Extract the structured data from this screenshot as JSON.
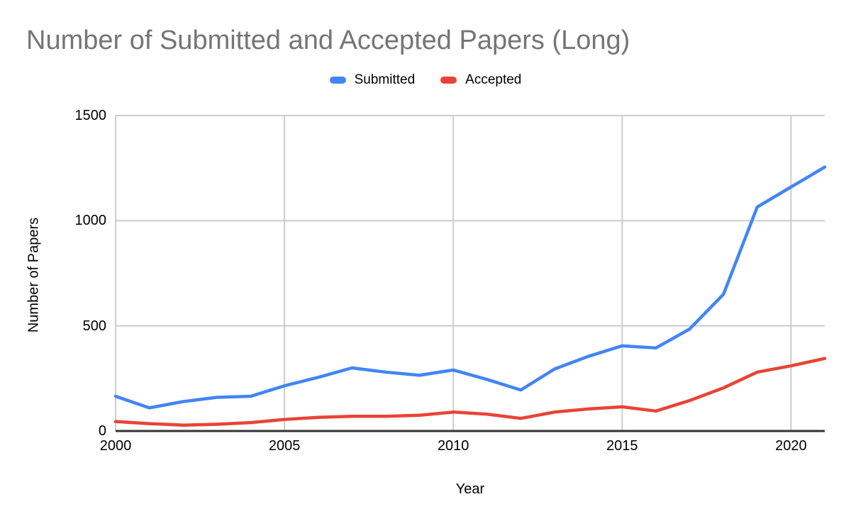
{
  "title": "Number of Submitted and Accepted Papers (Long)",
  "axes": {
    "x_title": "Year",
    "y_title": "Number of Papers"
  },
  "colors": {
    "submitted": "#4285f4",
    "accepted": "#ea4335",
    "grid": "#cccccc",
    "axis": "#333333",
    "title_text": "#757575",
    "label_text": "#000000"
  },
  "chart_data": {
    "type": "line",
    "title": "Number of Submitted and Accepted Papers (Long)",
    "xlabel": "Year",
    "ylabel": "Number of Papers",
    "x": [
      2000,
      2001,
      2002,
      2003,
      2004,
      2005,
      2006,
      2007,
      2008,
      2009,
      2010,
      2011,
      2012,
      2013,
      2014,
      2015,
      2016,
      2017,
      2018,
      2019,
      2020,
      2021
    ],
    "series": [
      {
        "name": "Submitted",
        "color": "#4285f4",
        "values": [
          165,
          110,
          140,
          160,
          165,
          215,
          255,
          300,
          280,
          265,
          290,
          245,
          195,
          295,
          355,
          405,
          395,
          485,
          650,
          1065,
          1160,
          1255
        ]
      },
      {
        "name": "Accepted",
        "color": "#ea4335",
        "values": [
          45,
          35,
          28,
          32,
          40,
          55,
          65,
          70,
          70,
          75,
          90,
          80,
          60,
          90,
          105,
          115,
          95,
          145,
          205,
          280,
          310,
          345
        ]
      }
    ],
    "xlim": [
      2000,
      2021
    ],
    "ylim": [
      0,
      1500
    ],
    "xticks": [
      2000,
      2005,
      2010,
      2015,
      2020
    ],
    "yticks": [
      0,
      500,
      1000,
      1500
    ],
    "grid": true,
    "legend_position": "top"
  }
}
